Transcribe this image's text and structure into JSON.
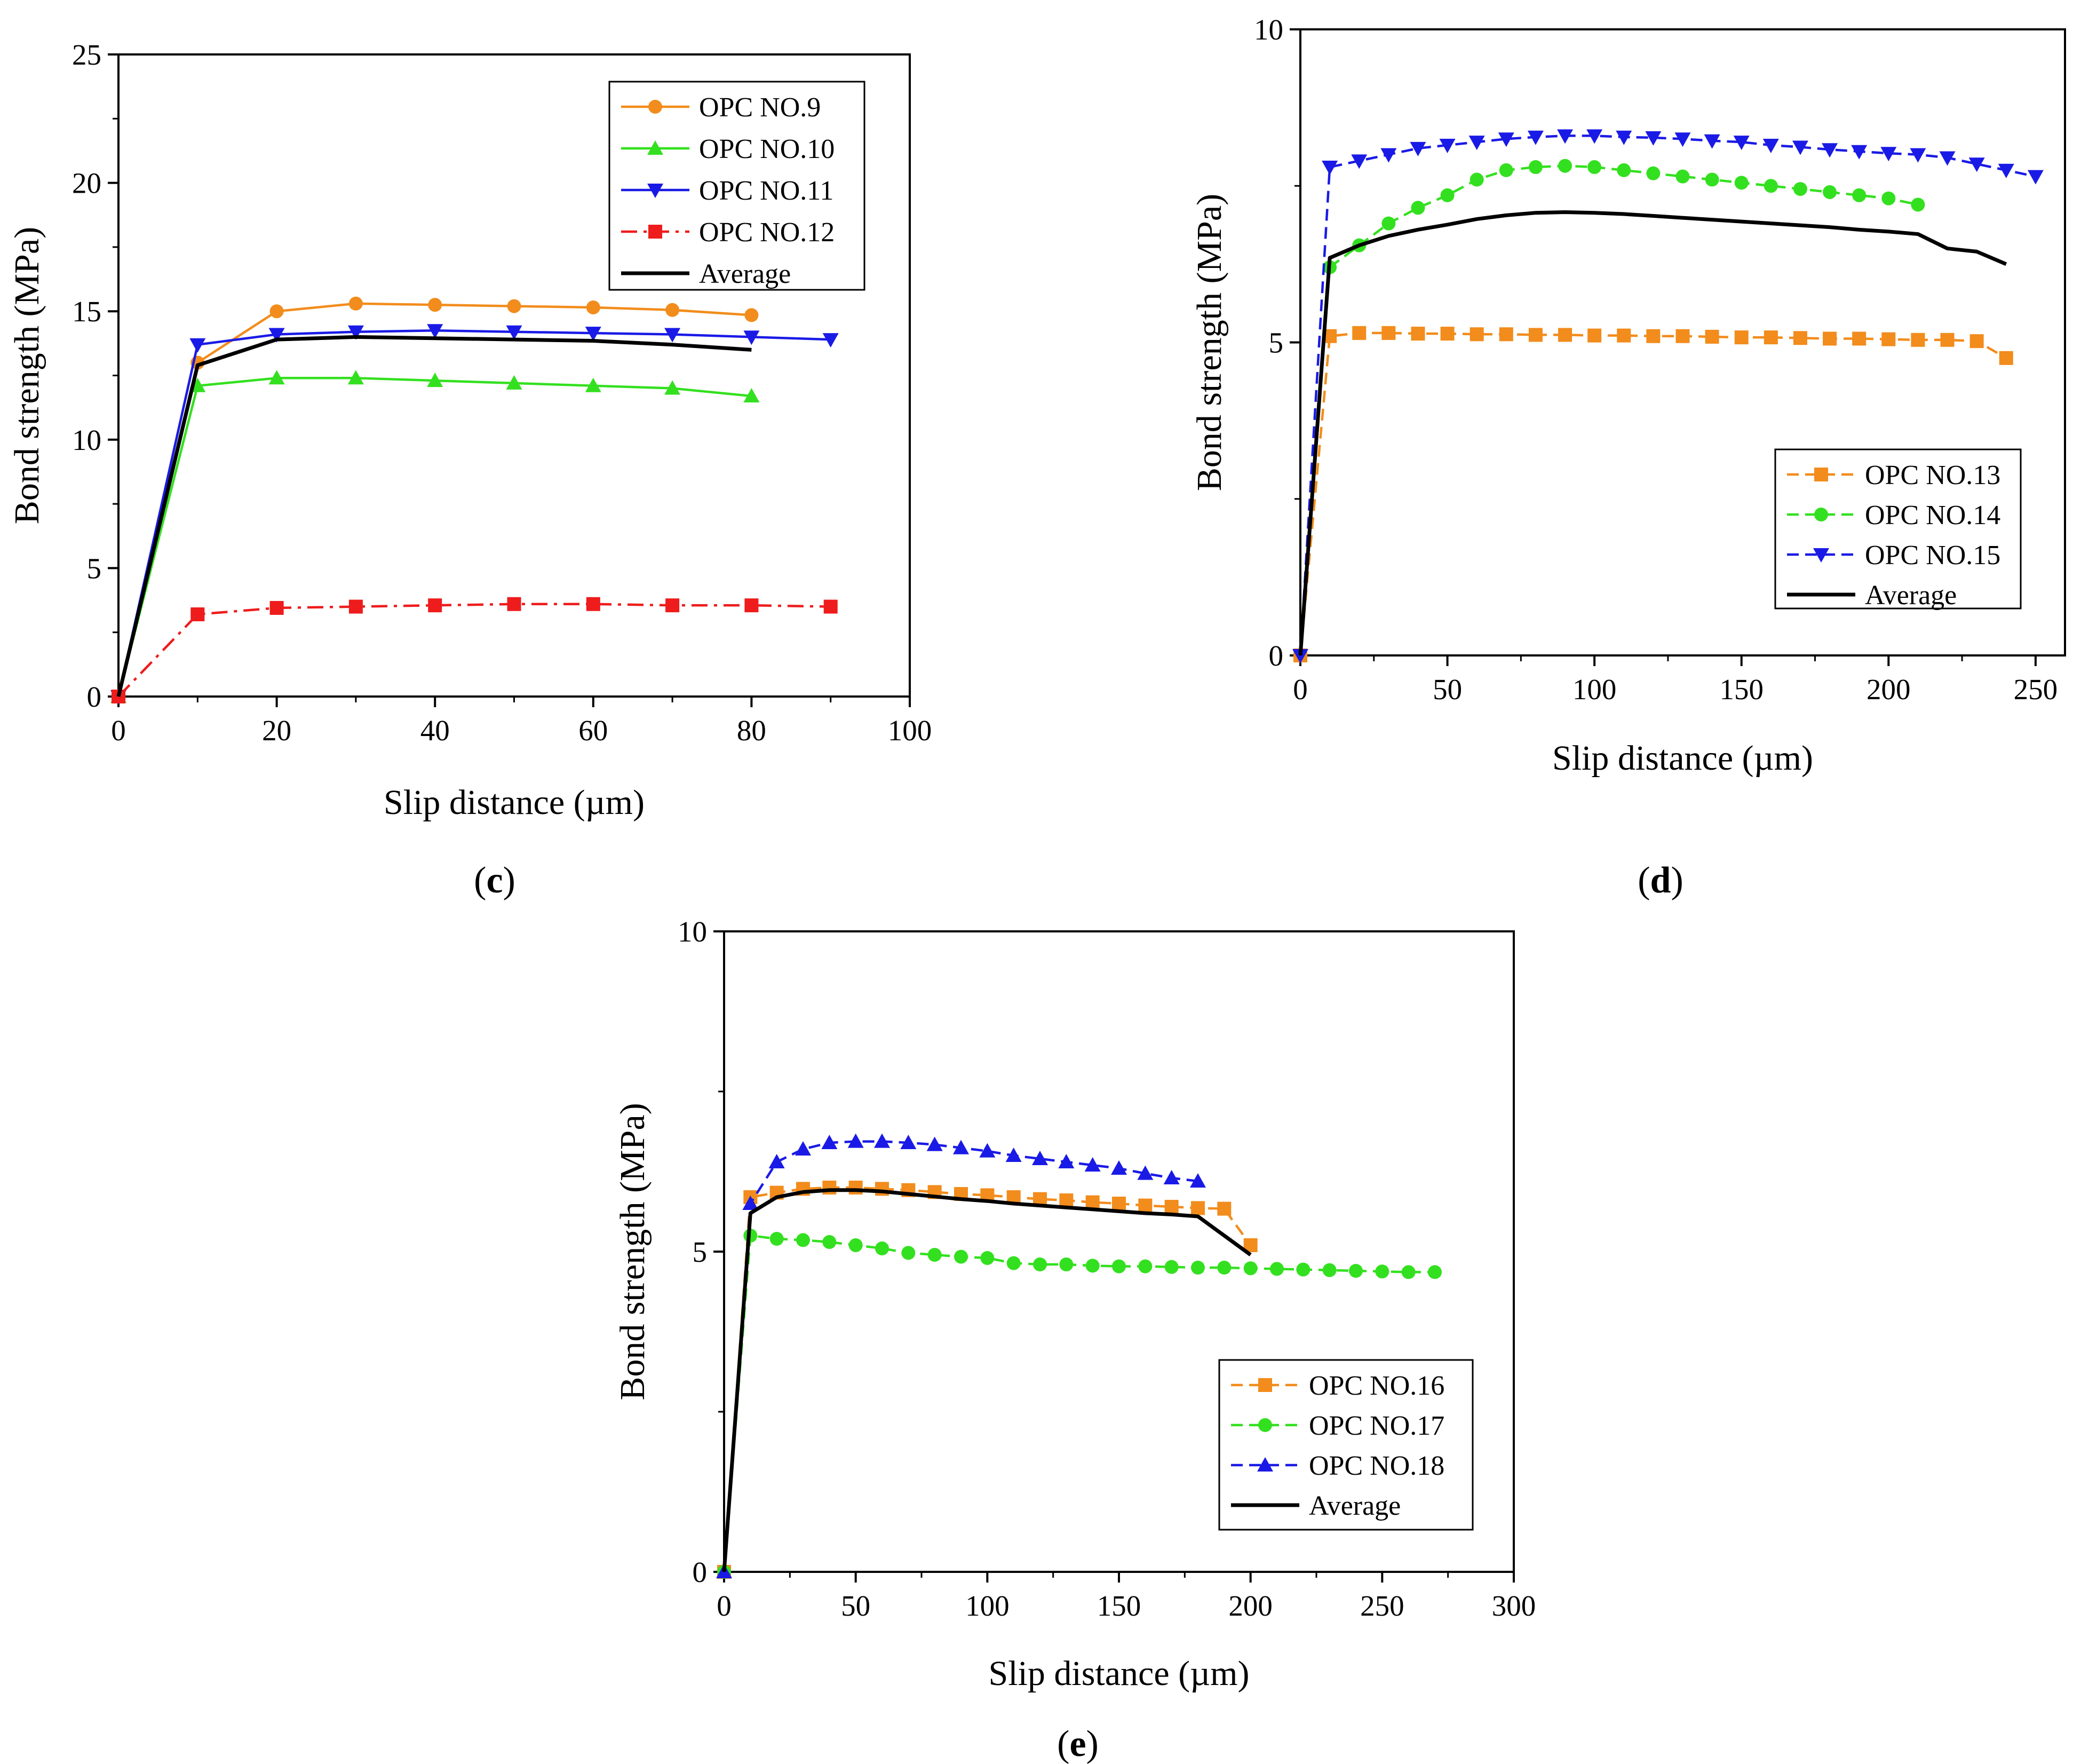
{
  "chart_data": [
    {
      "type": "line",
      "panel_label": "c",
      "xlabel": "Slip distance (µm)",
      "ylabel": "Bond strength (MPa)",
      "xlim": [
        0,
        100
      ],
      "ylim": [
        0,
        25
      ],
      "xticks": [
        0,
        20,
        40,
        60,
        80,
        100
      ],
      "yticks": [
        0,
        5,
        10,
        15,
        20,
        25
      ],
      "grid": false,
      "legend_position": "top-right",
      "series": [
        {
          "name": "OPC NO.9",
          "color": "#f28c1c",
          "marker": "circle",
          "dash": "solid",
          "x": [
            0,
            10,
            20,
            30,
            40,
            50,
            60,
            70,
            80
          ],
          "y": [
            0,
            13.0,
            15.0,
            15.3,
            15.25,
            15.2,
            15.15,
            15.05,
            14.85
          ]
        },
        {
          "name": "OPC NO.10",
          "color": "#33e01f",
          "marker": "triangle-up",
          "dash": "solid",
          "x": [
            0,
            10,
            20,
            30,
            40,
            50,
            60,
            70,
            80
          ],
          "y": [
            0,
            12.1,
            12.4,
            12.4,
            12.3,
            12.2,
            12.1,
            12.0,
            11.7
          ]
        },
        {
          "name": "OPC NO.11",
          "color": "#1a1ae6",
          "marker": "triangle-down",
          "dash": "solid",
          "x": [
            0,
            10,
            20,
            30,
            40,
            50,
            60,
            70,
            80,
            90
          ],
          "y": [
            0,
            13.7,
            14.1,
            14.2,
            14.25,
            14.2,
            14.15,
            14.1,
            14.0,
            13.9
          ]
        },
        {
          "name": "OPC NO.12",
          "color": "#ee1c1c",
          "marker": "square",
          "dash": "dashdot",
          "x": [
            0,
            10,
            20,
            30,
            40,
            50,
            60,
            70,
            80,
            90
          ],
          "y": [
            0,
            3.2,
            3.45,
            3.5,
            3.55,
            3.6,
            3.6,
            3.55,
            3.55,
            3.5
          ]
        },
        {
          "name": "Average",
          "color": "#000000",
          "marker": "none",
          "dash": "solid",
          "x": [
            0,
            10,
            20,
            30,
            40,
            50,
            60,
            70,
            80
          ],
          "y": [
            0,
            12.9,
            13.9,
            14.0,
            13.95,
            13.9,
            13.85,
            13.7,
            13.5
          ]
        }
      ]
    },
    {
      "type": "line",
      "panel_label": "d",
      "xlabel": "Slip distance (µm)",
      "ylabel": "Bond strength (MPa)",
      "xlim": [
        0,
        260
      ],
      "ylim": [
        0,
        10
      ],
      "xticks": [
        0,
        50,
        100,
        150,
        200,
        250
      ],
      "yticks": [
        0,
        5,
        10
      ],
      "grid": false,
      "legend_position": "bottom-right",
      "series": [
        {
          "name": "OPC NO.13",
          "color": "#f28c1c",
          "marker": "square",
          "dash": "dashed",
          "x": [
            0,
            10,
            20,
            30,
            40,
            50,
            60,
            70,
            80,
            90,
            100,
            110,
            120,
            130,
            140,
            150,
            160,
            170,
            180,
            190,
            200,
            210,
            220,
            230,
            240
          ],
          "y": [
            0,
            5.1,
            5.15,
            5.15,
            5.14,
            5.14,
            5.13,
            5.13,
            5.12,
            5.12,
            5.11,
            5.11,
            5.1,
            5.1,
            5.09,
            5.08,
            5.08,
            5.07,
            5.06,
            5.06,
            5.05,
            5.04,
            5.04,
            5.02,
            4.75
          ]
        },
        {
          "name": "OPC NO.14",
          "color": "#33e01f",
          "marker": "circle",
          "dash": "dashed",
          "x": [
            10,
            20,
            30,
            40,
            50,
            60,
            70,
            80,
            90,
            100,
            110,
            120,
            130,
            140,
            150,
            160,
            170,
            180,
            190,
            200,
            210
          ],
          "y": [
            6.2,
            6.55,
            6.9,
            7.15,
            7.35,
            7.6,
            7.75,
            7.8,
            7.82,
            7.8,
            7.75,
            7.7,
            7.65,
            7.6,
            7.55,
            7.5,
            7.45,
            7.4,
            7.35,
            7.3,
            7.2
          ]
        },
        {
          "name": "OPC NO.15",
          "color": "#1a1ae6",
          "marker": "triangle-down",
          "dash": "dashed",
          "x": [
            0,
            10,
            20,
            30,
            40,
            50,
            60,
            70,
            80,
            90,
            100,
            110,
            120,
            130,
            140,
            150,
            160,
            170,
            180,
            190,
            200,
            210,
            220,
            230,
            240,
            250
          ],
          "y": [
            0,
            7.8,
            7.9,
            8.0,
            8.1,
            8.15,
            8.2,
            8.25,
            8.28,
            8.3,
            8.3,
            8.28,
            8.27,
            8.25,
            8.22,
            8.2,
            8.15,
            8.12,
            8.08,
            8.05,
            8.02,
            8.0,
            7.95,
            7.85,
            7.75,
            7.65
          ]
        },
        {
          "name": "Average",
          "color": "#000000",
          "marker": "none",
          "dash": "solid",
          "x": [
            0,
            10,
            20,
            30,
            40,
            50,
            60,
            70,
            80,
            90,
            100,
            110,
            120,
            130,
            140,
            150,
            160,
            170,
            180,
            190,
            200,
            210,
            220,
            230,
            240
          ],
          "y": [
            0,
            6.35,
            6.55,
            6.7,
            6.8,
            6.88,
            6.97,
            7.03,
            7.07,
            7.08,
            7.07,
            7.05,
            7.02,
            6.99,
            6.96,
            6.93,
            6.9,
            6.87,
            6.84,
            6.8,
            6.77,
            6.73,
            6.5,
            6.45,
            6.25
          ]
        }
      ]
    },
    {
      "type": "line",
      "panel_label": "e",
      "xlabel": "Slip distance (µm)",
      "ylabel": "Bond strength (MPa)",
      "xlim": [
        0,
        300
      ],
      "ylim": [
        0,
        10
      ],
      "xticks": [
        0,
        50,
        100,
        150,
        200,
        250,
        300
      ],
      "yticks": [
        0,
        5,
        10
      ],
      "grid": false,
      "legend_position": "bottom-right",
      "series": [
        {
          "name": "OPC NO.16",
          "color": "#f28c1c",
          "marker": "square",
          "dash": "dashed",
          "x": [
            0,
            10,
            20,
            30,
            40,
            50,
            60,
            70,
            80,
            90,
            100,
            110,
            120,
            130,
            140,
            150,
            160,
            170,
            180,
            190,
            200
          ],
          "y": [
            0,
            5.85,
            5.92,
            5.98,
            6.0,
            6.0,
            5.98,
            5.96,
            5.93,
            5.9,
            5.88,
            5.85,
            5.82,
            5.8,
            5.77,
            5.75,
            5.72,
            5.7,
            5.68,
            5.67,
            5.1
          ]
        },
        {
          "name": "OPC NO.17",
          "color": "#33e01f",
          "marker": "circle",
          "dash": "dashed",
          "x": [
            0,
            10,
            20,
            30,
            40,
            50,
            60,
            70,
            80,
            90,
            100,
            110,
            120,
            130,
            140,
            150,
            160,
            170,
            180,
            190,
            200,
            210,
            220,
            230,
            240,
            250,
            260,
            270
          ],
          "y": [
            0,
            5.25,
            5.2,
            5.18,
            5.15,
            5.1,
            5.05,
            4.98,
            4.95,
            4.92,
            4.9,
            4.82,
            4.8,
            4.8,
            4.78,
            4.77,
            4.77,
            4.76,
            4.75,
            4.75,
            4.74,
            4.73,
            4.72,
            4.71,
            4.7,
            4.69,
            4.68,
            4.68
          ]
        },
        {
          "name": "OPC NO.18",
          "color": "#1a1ae6",
          "marker": "triangle-up",
          "dash": "dashed",
          "x": [
            0,
            10,
            20,
            30,
            40,
            50,
            60,
            70,
            80,
            90,
            100,
            110,
            120,
            130,
            140,
            150,
            160,
            170,
            180
          ],
          "y": [
            0,
            5.75,
            6.4,
            6.6,
            6.7,
            6.72,
            6.72,
            6.7,
            6.67,
            6.62,
            6.57,
            6.5,
            6.45,
            6.4,
            6.35,
            6.3,
            6.22,
            6.15,
            6.1
          ]
        },
        {
          "name": "Average",
          "color": "#000000",
          "marker": "none",
          "dash": "solid",
          "x": [
            0,
            10,
            20,
            30,
            40,
            50,
            60,
            70,
            80,
            90,
            100,
            110,
            120,
            130,
            140,
            150,
            160,
            170,
            180,
            190,
            200
          ],
          "y": [
            0,
            5.6,
            5.85,
            5.93,
            5.96,
            5.96,
            5.94,
            5.9,
            5.86,
            5.82,
            5.79,
            5.75,
            5.72,
            5.69,
            5.66,
            5.63,
            5.6,
            5.58,
            5.55,
            5.25,
            4.95
          ]
        }
      ]
    }
  ]
}
